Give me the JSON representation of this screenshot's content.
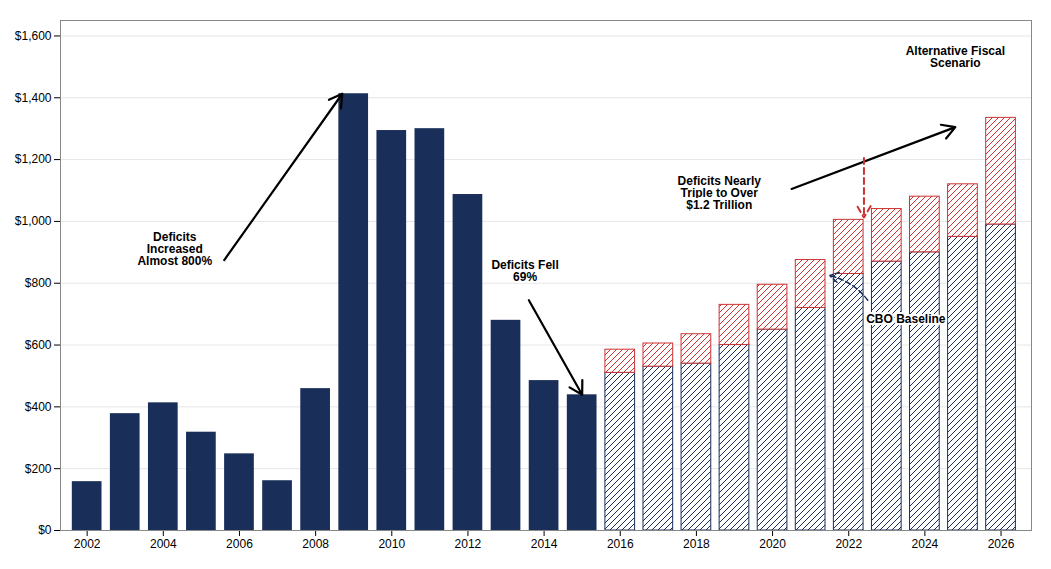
{
  "chart_data": {
    "type": "bar",
    "x": [
      2002,
      2003,
      2004,
      2005,
      2006,
      2007,
      2008,
      2009,
      2010,
      2011,
      2012,
      2013,
      2014,
      2015,
      2016,
      2017,
      2018,
      2019,
      2020,
      2021,
      2022,
      2023,
      2024,
      2025,
      2026
    ],
    "series": [
      {
        "color": "#1a2e5a",
        "values": [
          158,
          378,
          413,
          318,
          248,
          161,
          459,
          1413,
          1294,
          1300,
          1087,
          680,
          485,
          439,
          null,
          null,
          null,
          null,
          null,
          null,
          null,
          null,
          null,
          null,
          null
        ]
      },
      {
        "color": "#1a2e5a",
        "values": [
          null,
          null,
          null,
          null,
          null,
          null,
          null,
          null,
          null,
          null,
          null,
          null,
          null,
          null,
          510,
          530,
          540,
          600,
          650,
          720,
          830,
          870,
          900,
          950,
          990
        ]
      },
      {
        "color": "#cc3333",
        "values": [
          null,
          null,
          null,
          null,
          null,
          null,
          null,
          null,
          null,
          null,
          null,
          null,
          null,
          null,
          75,
          75,
          95,
          130,
          145,
          155,
          175,
          170,
          180,
          170,
          345
        ]
      }
    ],
    "stacked": true,
    "xlim": [
      2001.3,
      2026.8
    ],
    "xticks": [
      2002,
      2004,
      2006,
      2008,
      2010,
      2012,
      2014,
      2016,
      2018,
      2020,
      2022,
      2024,
      2026
    ],
    "ylim": [
      0,
      1650
    ],
    "yticks": [
      {
        "value": 0,
        "label": "$0"
      },
      {
        "value": 200,
        "label": "$200"
      },
      {
        "value": 400,
        "label": "$400"
      },
      {
        "value": 600,
        "label": "$600"
      },
      {
        "value": 800,
        "label": "$800"
      },
      {
        "value": 1000,
        "label": "$1,000"
      },
      {
        "value": 1200,
        "label": "$1,200"
      },
      {
        "value": 1400,
        "label": "$1,400"
      },
      {
        "value": 1600,
        "label": "$1,600"
      }
    ],
    "grid": true,
    "annotations": [
      "Deficits\nIncreased\nAlmost 800%",
      "Deficits Fell\n69%",
      "Deficits Nearly\nTriple to Over\n$1.2 Trillion",
      "Alternative Fiscal\nScenario",
      "CBO Baseline"
    ]
  }
}
